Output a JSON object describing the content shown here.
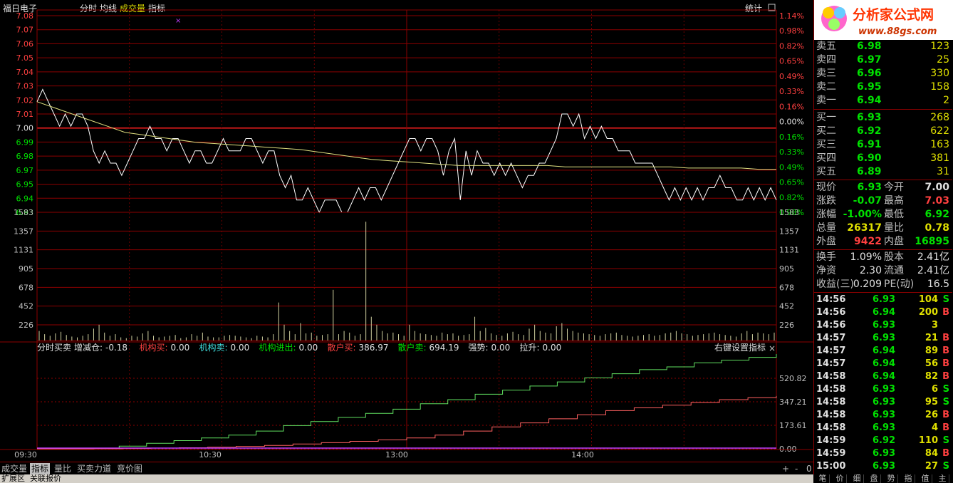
{
  "header": {
    "stock_name": "福日电子",
    "menu": [
      "分时",
      "均线",
      "成交量",
      "指标"
    ],
    "stats_label": "统计"
  },
  "price_axis": {
    "left": [
      "7.08",
      "7.07",
      "7.06",
      "7.05",
      "7.04",
      "7.03",
      "7.02",
      "7.01",
      "7.00",
      "6.99",
      "6.98",
      "6.97",
      "6.95",
      "6.94",
      "6.93"
    ],
    "right": [
      "1.14%",
      "0.98%",
      "0.82%",
      "0.65%",
      "0.49%",
      "0.33%",
      "0.16%",
      "0.00%",
      "0.16%",
      "0.33%",
      "0.49%",
      "0.65%",
      "0.82%",
      "0.98%"
    ]
  },
  "volume_axis": [
    "1583",
    "1357",
    "1131",
    "905",
    "678",
    "452",
    "226"
  ],
  "indicator_bar": {
    "name": "分时买卖",
    "items": [
      {
        "label": "增减仓:",
        "value": "-0.18",
        "color": "#e0e0e0"
      },
      {
        "label": "机构买:",
        "value": "0.00",
        "color": "#ff4040"
      },
      {
        "label": "机构卖:",
        "value": "0.00",
        "color": "#40e0e0"
      },
      {
        "label": "机构进出:",
        "value": "0.00",
        "color": "#00e000"
      },
      {
        "label": "散户买:",
        "value": "386.97",
        "color": "#ff4040"
      },
      {
        "label": "散户卖:",
        "value": "694.19",
        "color": "#00e000"
      },
      {
        "label": "强势:",
        "value": "0.00",
        "color": "#e0e0e0"
      },
      {
        "label": "拉升:",
        "value": "0.00",
        "color": "#e0e0e0"
      }
    ],
    "right_hint": "右键设置指标"
  },
  "indicator_axis": [
    "520.82",
    "347.21",
    "173.61",
    "0.00"
  ],
  "time_axis": [
    "09:30",
    "10:30",
    "13:00",
    "14:00"
  ],
  "bottom_tabs": [
    "成交量",
    "指标",
    "量比",
    "买卖力道",
    "竞价图"
  ],
  "bottom_controls": [
    "+",
    "-",
    "0"
  ],
  "status_bar": [
    "扩展区",
    "关联报价"
  ],
  "right_tabs": [
    "笔",
    "价",
    "细",
    "盘",
    "势",
    "指",
    "值",
    "主"
  ],
  "logo": {
    "title": "分析家公式网",
    "url": "www.88gs.com"
  },
  "orderbook": {
    "sell": [
      {
        "label": "卖五",
        "price": "6.98",
        "vol": "123"
      },
      {
        "label": "卖四",
        "price": "6.97",
        "vol": "25"
      },
      {
        "label": "卖三",
        "price": "6.96",
        "vol": "330"
      },
      {
        "label": "卖二",
        "price": "6.95",
        "vol": "158"
      },
      {
        "label": "卖一",
        "price": "6.94",
        "vol": "2"
      }
    ],
    "buy": [
      {
        "label": "买一",
        "price": "6.93",
        "vol": "268"
      },
      {
        "label": "买二",
        "price": "6.92",
        "vol": "622"
      },
      {
        "label": "买三",
        "price": "6.91",
        "vol": "163"
      },
      {
        "label": "买四",
        "price": "6.90",
        "vol": "381"
      },
      {
        "label": "买五",
        "price": "6.89",
        "vol": "31"
      }
    ]
  },
  "quote": [
    {
      "l1": "现价",
      "v1": "6.93",
      "c1": "#00e000",
      "l2": "今开",
      "v2": "7.00",
      "c2": "#e0e0e0"
    },
    {
      "l1": "涨跌",
      "v1": "-0.07",
      "c1": "#00e000",
      "l2": "最高",
      "v2": "7.03",
      "c2": "#ff4040"
    },
    {
      "l1": "涨幅",
      "v1": "-1.00%",
      "c1": "#00e000",
      "l2": "最低",
      "v2": "6.92",
      "c2": "#00e000"
    },
    {
      "l1": "总量",
      "v1": "26317",
      "c1": "#e0e000",
      "l2": "量比",
      "v2": "0.78",
      "c2": "#e0e000"
    },
    {
      "l1": "外盘",
      "v1": "9422",
      "c1": "#ff4040",
      "l2": "内盘",
      "v2": "16895",
      "c2": "#00e000"
    }
  ],
  "fundamentals": [
    {
      "l1": "换手",
      "v1": "1.09%",
      "l2": "股本",
      "v2": "2.41亿"
    },
    {
      "l1": "净资",
      "v1": "2.30",
      "l2": "流通",
      "v2": "2.41亿"
    },
    {
      "l1": "收益(三)",
      "v1": "0.209",
      "l2": "PE(动)",
      "v2": "16.5"
    }
  ],
  "ticks": [
    {
      "time": "14:56",
      "price": "6.93",
      "vol": "104",
      "bs": "S"
    },
    {
      "time": "14:56",
      "price": "6.94",
      "vol": "200",
      "bs": "B"
    },
    {
      "time": "14:56",
      "price": "6.93",
      "vol": "3",
      "bs": ""
    },
    {
      "time": "14:57",
      "price": "6.93",
      "vol": "21",
      "bs": "B"
    },
    {
      "time": "14:57",
      "price": "6.94",
      "vol": "89",
      "bs": "B"
    },
    {
      "time": "14:57",
      "price": "6.94",
      "vol": "56",
      "bs": "B"
    },
    {
      "time": "14:58",
      "price": "6.94",
      "vol": "82",
      "bs": "B"
    },
    {
      "time": "14:58",
      "price": "6.93",
      "vol": "6",
      "bs": "S"
    },
    {
      "time": "14:58",
      "price": "6.93",
      "vol": "95",
      "bs": "S"
    },
    {
      "time": "14:58",
      "price": "6.93",
      "vol": "26",
      "bs": "B"
    },
    {
      "time": "14:58",
      "price": "6.93",
      "vol": "4",
      "bs": "B"
    },
    {
      "time": "14:59",
      "price": "6.92",
      "vol": "110",
      "bs": "S"
    },
    {
      "time": "14:59",
      "price": "6.93",
      "vol": "84",
      "bs": "B"
    },
    {
      "time": "15:00",
      "price": "6.93",
      "vol": "27",
      "bs": "S"
    }
  ],
  "colors": {
    "grid": "#8b0000",
    "price_line": "#ffffff",
    "avg_line": "#e0e080",
    "up": "#ff4040",
    "down": "#00e000",
    "buy_line": "#ff6060",
    "sell_line": "#60e060"
  },
  "chart_data": {
    "type": "line",
    "price_series": [
      7.01,
      7.02,
      7.01,
      7.0,
      6.99,
      7.0,
      6.99,
      7.0,
      7.0,
      6.99,
      6.97,
      6.96,
      6.97,
      6.96,
      6.96,
      6.95,
      6.96,
      6.97,
      6.98,
      6.98,
      6.99,
      6.98,
      6.98,
      6.97,
      6.98,
      6.98,
      6.97,
      6.96,
      6.97,
      6.97,
      6.96,
      6.96,
      6.97,
      6.98,
      6.97,
      6.97,
      6.97,
      6.98,
      6.98,
      6.97,
      6.96,
      6.97,
      6.97,
      6.95,
      6.94,
      6.95,
      6.93,
      6.93,
      6.94,
      6.93,
      6.92,
      6.93,
      6.93,
      6.93,
      6.92,
      6.92,
      6.93,
      6.94,
      6.93,
      6.94,
      6.94,
      6.93,
      6.94,
      6.95,
      6.96,
      6.97,
      6.98,
      6.98,
      6.97,
      6.98,
      6.98,
      6.97,
      6.95,
      6.97,
      6.98,
      6.93,
      6.97,
      6.95,
      6.97,
      6.96,
      6.96,
      6.95,
      6.96,
      6.95,
      6.96,
      6.95,
      6.94,
      6.95,
      6.95,
      6.96,
      6.96,
      6.97,
      6.98,
      7.0,
      7.0,
      6.99,
      7.0,
      6.98,
      6.99,
      6.98,
      6.99,
      6.98,
      6.98,
      6.97,
      6.97,
      6.97,
      6.96,
      6.96,
      6.96,
      6.96,
      6.95,
      6.94,
      6.93,
      6.94,
      6.93,
      6.94,
      6.93,
      6.94,
      6.93,
      6.94,
      6.94,
      6.95,
      6.94,
      6.94,
      6.93,
      6.93,
      6.94,
      6.93,
      6.94,
      6.93,
      6.94,
      6.93
    ],
    "avg_series": [
      7.01,
      7.005,
      7.0,
      6.995,
      6.99,
      6.985,
      6.983,
      6.981,
      6.979,
      6.977,
      6.976,
      6.975,
      6.974,
      6.973,
      6.972,
      6.971,
      6.969,
      6.967,
      6.965,
      6.963,
      6.962,
      6.961,
      6.96,
      6.959,
      6.958,
      6.958,
      6.958,
      6.958,
      6.958,
      6.958,
      6.957,
      6.957,
      6.957,
      6.957,
      6.957,
      6.957,
      6.957,
      6.956,
      6.956,
      6.956,
      6.956,
      6.955,
      6.955
    ],
    "volume_series": [
      120,
      80,
      60,
      90,
      110,
      70,
      50,
      40,
      60,
      80,
      150,
      200,
      100,
      60,
      80,
      40,
      30,
      60,
      50,
      90,
      120,
      60,
      40,
      50,
      60,
      70,
      30,
      40,
      80,
      60,
      100,
      50,
      40,
      40,
      60,
      70,
      60,
      50,
      40,
      30,
      60,
      50,
      40,
      80,
      480,
      200,
      120,
      80,
      220,
      90,
      100,
      60,
      70,
      80,
      640,
      80,
      120,
      100,
      60,
      80,
      1500,
      300,
      200,
      120,
      90,
      100,
      80,
      60,
      200,
      120,
      90,
      80,
      70,
      60,
      100,
      80,
      90,
      60,
      70,
      80,
      300,
      120,
      160,
      90,
      70,
      60,
      90,
      110,
      80,
      70,
      150,
      200,
      120,
      100,
      90,
      180,
      220,
      150,
      120,
      100,
      90,
      80,
      70,
      60,
      80,
      90,
      100,
      70,
      60,
      50,
      60,
      70,
      80,
      60,
      70,
      90,
      100,
      120,
      90,
      80,
      60,
      70,
      80,
      90,
      100,
      80,
      70,
      60,
      50,
      90,
      120,
      80,
      100,
      90,
      80,
      100
    ],
    "sell_line": [
      0,
      0,
      5,
      20,
      40,
      60,
      80,
      100,
      130,
      170,
      200,
      230,
      260,
      290,
      330,
      360,
      400,
      430,
      460,
      490,
      520,
      550,
      580,
      600,
      630,
      650,
      670,
      694.19
    ],
    "buy_line": [
      0,
      0,
      1,
      3,
      5,
      8,
      12,
      18,
      25,
      35,
      45,
      55,
      65,
      80,
      100,
      130,
      160,
      190,
      220,
      250,
      280,
      300,
      320,
      340,
      360,
      375,
      386.97
    ],
    "ylim_price": [
      6.92,
      7.08
    ],
    "ylim_volume": [
      0,
      1583
    ],
    "ylim_indicator": [
      0,
      694.19
    ]
  }
}
